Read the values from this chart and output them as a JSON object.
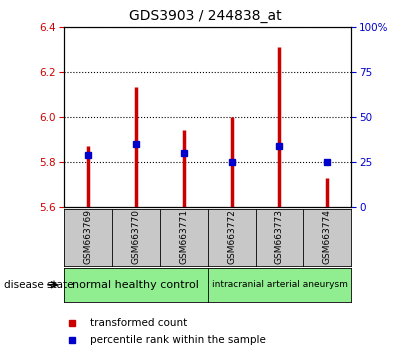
{
  "title": "GDS3903 / 244838_at",
  "samples": [
    "GSM663769",
    "GSM663770",
    "GSM663771",
    "GSM663772",
    "GSM663773",
    "GSM663774"
  ],
  "bar_tops": [
    5.87,
    6.13,
    5.94,
    6.0,
    6.31,
    5.73
  ],
  "bar_bottom": 5.6,
  "percentile_values": [
    5.83,
    5.88,
    5.84,
    5.8,
    5.87,
    5.8
  ],
  "ylim_left": [
    5.6,
    6.4
  ],
  "ylim_right": [
    0,
    100
  ],
  "yticks_left": [
    5.6,
    5.8,
    6.0,
    6.2,
    6.4
  ],
  "yticks_right": [
    0,
    25,
    50,
    75,
    100
  ],
  "ytick_labels_right": [
    "0",
    "25",
    "50",
    "75",
    "100%"
  ],
  "bar_color": "#cc0000",
  "percentile_color": "#0000cc",
  "group1_label": "normal healthy control",
  "group2_label": "intracranial arterial aneurysm",
  "group_color": "#90ee90",
  "sample_box_color": "#c8c8c8",
  "disease_state_label": "disease state",
  "legend_label1": "transformed count",
  "legend_label2": "percentile rank within the sample"
}
